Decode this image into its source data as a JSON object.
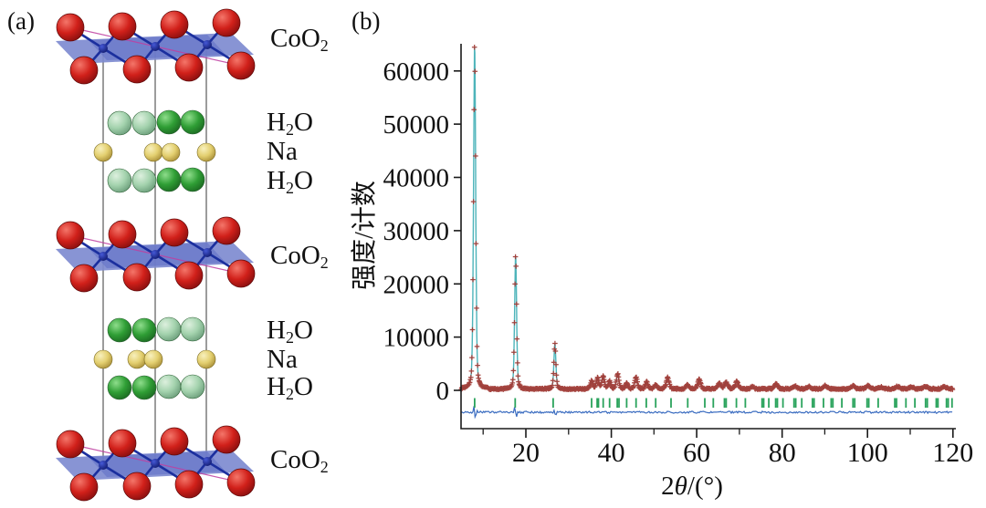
{
  "figure": {
    "panel_a_label": "(a)",
    "panel_b_label": "(b)"
  },
  "panel_a": {
    "description": "layered crystal structure of sodium cobalt oxide hydrate",
    "layers": [
      {
        "pre": "CoO",
        "sub": "2",
        "post": ""
      },
      {
        "pre": "H",
        "sub": "2",
        "post": "O"
      },
      {
        "pre": "Na",
        "sub": "",
        "post": ""
      },
      {
        "pre": "H",
        "sub": "2",
        "post": "O"
      },
      {
        "pre": "CoO",
        "sub": "2",
        "post": ""
      },
      {
        "pre": "H",
        "sub": "2",
        "post": "O"
      },
      {
        "pre": "Na",
        "sub": "",
        "post": ""
      },
      {
        "pre": "H",
        "sub": "2",
        "post": "O"
      },
      {
        "pre": "CoO",
        "sub": "2",
        "post": ""
      }
    ],
    "atom_colors": {
      "oxygen": "#cc1f18",
      "water_bright_green": "#36a13a",
      "water_pale_green": "#a8d8b0",
      "sodium_yellow": "#e6d277",
      "cobalt_blue": "#1e2f9a",
      "slab_blue": "#7e8bd0",
      "bond_magenta": "#bf3fa0"
    }
  },
  "chart_data": {
    "type": "line",
    "title": "",
    "xlabel_parts": {
      "pre": "2",
      "italic": "θ",
      "post": "/(°)"
    },
    "ylabel": "强度/计数",
    "xlim": [
      4.8,
      120
    ],
    "ylim": [
      -6500,
      65000
    ],
    "x_ticks": [
      20,
      40,
      60,
      80,
      100,
      120
    ],
    "x_minor_ticks": [
      10,
      30,
      50,
      70,
      90,
      110
    ],
    "y_ticks": [
      0,
      10000,
      20000,
      30000,
      40000,
      50000,
      60000
    ],
    "grid": false,
    "legend": "none",
    "baseline_counts": 260,
    "series": [
      {
        "name": "observed",
        "style": "plus-markers",
        "color": "#a03a35"
      },
      {
        "name": "calculated",
        "style": "line",
        "color": "#4db4ba"
      },
      {
        "name": "bragg-positions",
        "style": "tick-row",
        "color": "#2aa35c",
        "value": -2400
      },
      {
        "name": "difference",
        "style": "line",
        "color": "#3a6cc0",
        "value": -4200
      }
    ],
    "peaks": [
      [
        8.0,
        64800,
        0.26
      ],
      [
        17.6,
        25200,
        0.24
      ],
      [
        26.8,
        8600,
        0.24
      ],
      [
        35.4,
        1500,
        0.3
      ],
      [
        36.8,
        2100,
        0.3
      ],
      [
        38.1,
        2500,
        0.3
      ],
      [
        39.6,
        1500,
        0.3
      ],
      [
        41.5,
        2800,
        0.32
      ],
      [
        43.6,
        1000,
        0.3
      ],
      [
        45.8,
        2300,
        0.32
      ],
      [
        48.3,
        1300,
        0.32
      ],
      [
        50.4,
        800,
        0.32
      ],
      [
        53.2,
        2200,
        0.34
      ],
      [
        57.8,
        800,
        0.35
      ],
      [
        60.6,
        1800,
        0.36
      ],
      [
        65.3,
        1000,
        0.38
      ],
      [
        66.9,
        1300,
        0.38
      ],
      [
        69.4,
        1400,
        0.38
      ],
      [
        73.0,
        450,
        0.4
      ],
      [
        78.6,
        900,
        0.42
      ],
      [
        83.0,
        550,
        0.42
      ],
      [
        86.2,
        450,
        0.45
      ],
      [
        90.1,
        650,
        0.45
      ],
      [
        96.6,
        550,
        0.48
      ],
      [
        100.1,
        600,
        0.48
      ],
      [
        103.2,
        380,
        0.5
      ],
      [
        107.0,
        450,
        0.5
      ],
      [
        110.3,
        350,
        0.5
      ],
      [
        113.6,
        450,
        0.5
      ],
      [
        118.0,
        420,
        0.5
      ]
    ],
    "bragg_tick_positions": [
      8.0,
      17.5,
      26.4,
      35.4,
      36.7,
      37.0,
      38.1,
      39.6,
      41.4,
      41.8,
      43.6,
      45.8,
      48.2,
      50.4,
      54.0,
      57.9,
      61.9,
      63.9,
      66.5,
      66.9,
      69.3,
      71.4,
      75.3,
      75.7,
      76.9,
      78.5,
      78.9,
      80.2,
      82.8,
      83.2,
      84.6,
      87.1,
      87.5,
      89.7,
      91.5,
      91.9,
      94.0,
      96.6,
      97.0,
      99.9,
      100.3,
      102.5,
      106.4,
      106.8,
      109.0,
      111.1,
      113.6,
      114.0,
      116.1,
      116.5,
      118.5,
      118.9,
      119.8
    ]
  }
}
